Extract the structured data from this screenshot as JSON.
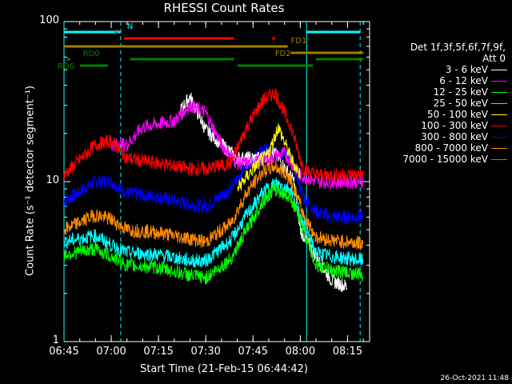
{
  "chart_data": {
    "type": "line",
    "title": "RHESSI Count Rates",
    "xlabel": "Start Time (21-Feb-15 06:44:42)",
    "ylabel": "Count Rate (s⁻¹ detector segment⁻¹)",
    "y_scale": "log",
    "ylim": [
      1,
      100
    ],
    "xlim_minutes_after_0645": [
      0,
      97
    ],
    "x_ticks": [
      "06:45",
      "07:00",
      "07:15",
      "07:30",
      "07:45",
      "08:00",
      "08:15"
    ],
    "y_ticks": [
      "1",
      "10",
      "100"
    ],
    "legend_header": [
      "Det 1f,3f,5f,6f,7f,9f,",
      "Att 0"
    ],
    "legend_position": "right",
    "series": [
      {
        "name": "3 - 6 keV",
        "color": "#ffffff",
        "x": [
          "06:45",
          "06:55",
          "07:05",
          "07:15",
          "07:22",
          "07:25",
          "07:30",
          "07:40",
          "07:47",
          "07:52",
          "07:58",
          "08:00",
          "08:05",
          "08:10",
          "08:15",
          "08:20"
        ],
        "y": [
          null,
          null,
          null,
          null,
          28,
          34,
          21,
          14,
          14,
          15,
          10,
          5,
          3.4,
          2.4,
          2.2,
          null
        ]
      },
      {
        "name": "6 - 12 keV",
        "color": "#ff00ff",
        "x": [
          "07:00",
          "07:05",
          "07:10",
          "07:15",
          "07:20",
          "07:25",
          "07:30",
          "07:35",
          "07:40",
          "07:45",
          "07:50",
          "07:55",
          "08:00",
          "08:05",
          "08:10",
          "08:15",
          "08:20"
        ],
        "y": [
          17,
          17,
          22,
          23,
          24,
          30,
          27,
          17,
          13,
          13,
          14,
          15,
          11,
          10,
          10,
          10,
          10
        ]
      },
      {
        "name": "12 - 25 keV",
        "color": "#00ff00",
        "x": [
          "06:45",
          "06:55",
          "07:00",
          "07:05",
          "07:15",
          "07:25",
          "07:30",
          "07:38",
          "07:43",
          "07:48",
          "07:52",
          "07:57",
          "08:01",
          "08:05",
          "08:10",
          "08:15",
          "08:20"
        ],
        "y": [
          3.5,
          3.8,
          3.4,
          3.0,
          2.9,
          2.6,
          2.5,
          3.3,
          5,
          7.5,
          9,
          8,
          5,
          3,
          2.8,
          2.7,
          2.6
        ]
      },
      {
        "name": "25 - 50 keV",
        "color": "#00ffff",
        "x": [
          "06:45",
          "06:55",
          "07:00",
          "07:05",
          "07:15",
          "07:25",
          "07:30",
          "07:38",
          "07:43",
          "07:48",
          "07:52",
          "07:57",
          "08:01",
          "08:05",
          "08:10",
          "08:15",
          "08:20"
        ],
        "y": [
          4.2,
          4.6,
          4.0,
          3.6,
          3.5,
          3.2,
          3.2,
          4.3,
          6.2,
          8.5,
          9.8,
          9,
          5.5,
          3.6,
          3.4,
          3.3,
          3.2
        ]
      },
      {
        "name": "50 - 100 keV",
        "color": "#ffff00",
        "x": [
          "07:40",
          "07:45",
          "07:50",
          "07:53",
          "07:57",
          "08:00"
        ],
        "y": [
          9,
          12,
          15,
          22,
          14,
          11
        ]
      },
      {
        "name": "100 - 300 keV",
        "color": "#ff0000",
        "x": [
          "06:45",
          "06:55",
          "07:00",
          "07:05",
          "07:15",
          "07:25",
          "07:30",
          "07:38",
          "07:43",
          "07:48",
          "07:52",
          "07:57",
          "08:01",
          "08:05",
          "08:10",
          "08:15",
          "08:20"
        ],
        "y": [
          11,
          17,
          18,
          14,
          13,
          12,
          12,
          13,
          22,
          32,
          36,
          22,
          12,
          11,
          11,
          11,
          11
        ]
      },
      {
        "name": "300 - 800 keV",
        "color": "#0000ff",
        "x": [
          "06:45",
          "06:55",
          "07:00",
          "07:05",
          "07:15",
          "07:25",
          "07:30",
          "07:38",
          "07:43",
          "07:48",
          "07:52",
          "07:57",
          "08:01",
          "08:05",
          "08:10",
          "08:15",
          "08:20"
        ],
        "y": [
          7.5,
          10,
          10,
          8.5,
          8,
          7.2,
          7,
          9,
          13,
          15.5,
          16,
          14,
          8,
          6.5,
          6,
          6,
          6
        ]
      },
      {
        "name": "800 - 7000 keV",
        "color": "#ff8c00",
        "x": [
          "06:45",
          "06:55",
          "07:00",
          "07:05",
          "07:15",
          "07:25",
          "07:30",
          "07:38",
          "07:43",
          "07:48",
          "07:52",
          "07:57",
          "08:01",
          "08:05",
          "08:10",
          "08:15",
          "08:20"
        ],
        "y": [
          5,
          6.2,
          5.8,
          5,
          4.8,
          4.4,
          4.2,
          5.5,
          8.5,
          11.5,
          12.5,
          10.5,
          6.2,
          4.5,
          4.3,
          4.2,
          4.1
        ]
      },
      {
        "name": "7000 - 15000 keV",
        "color": "#a08000",
        "x": [],
        "y": []
      }
    ],
    "annotations": [
      {
        "label": "N",
        "color": "#00ffff",
        "segments": [
          [
            "06:45",
            "07:03"
          ],
          [
            "08:02",
            "08:19"
          ]
        ]
      },
      {
        "label": "F",
        "color": "#ff0000",
        "segments": [
          [
            "07:04",
            "07:39"
          ],
          [
            "07:51",
            "07:52"
          ]
        ]
      },
      {
        "label": "FD1",
        "color": "#a08000",
        "segments": [
          [
            "06:45",
            "07:56"
          ]
        ]
      },
      {
        "label": "FD2",
        "color": "#a08000",
        "segments": [
          [
            "07:57",
            "08:20"
          ]
        ]
      },
      {
        "label": "RD0",
        "color": "#008000",
        "segments": [
          [
            "06:46",
            "06:47"
          ],
          [
            "07:06",
            "07:39"
          ],
          [
            "08:05",
            "08:20"
          ]
        ]
      },
      {
        "label": "RD6",
        "color": "#008000",
        "segments": [
          [
            "06:50",
            "06:59"
          ],
          [
            "07:40",
            "08:04"
          ]
        ]
      }
    ],
    "vlines_solid": [
      "06:45",
      "08:02"
    ],
    "vlines_dashed": [
      "07:03",
      "08:19"
    ]
  },
  "timestamp": "26-Oct-2021 11:48"
}
